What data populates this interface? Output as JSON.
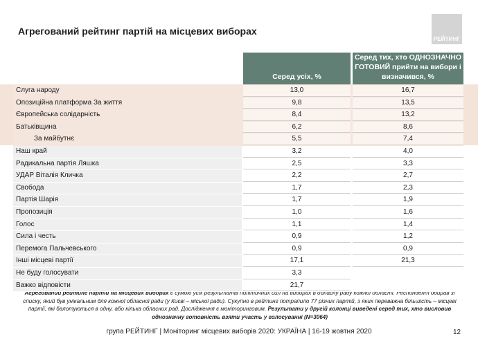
{
  "title": "Агрегований рейтинг партій на місцевих виборах",
  "logo_text": "РЕЙТИНГ",
  "columns": {
    "col1": "Серед усіх, %",
    "col2_lines": [
      "Серед тих, хто ОДНОЗНАЧНО",
      "ГОТОВИЙ прийти на вибори і",
      "визначився, %"
    ]
  },
  "rows": [
    {
      "name": "Слуга народу",
      "v1": "13,0",
      "v2": "16,7"
    },
    {
      "name": "Опозиційна платформа За життя",
      "v1": "9,8",
      "v2": "13,5"
    },
    {
      "name": "Європейська солідарність",
      "v1": "8,4",
      "v2": "13,2"
    },
    {
      "name": "Батьківщина",
      "v1": "6,2",
      "v2": "8,6"
    },
    {
      "name": "За майбутнє",
      "v1": "5,5",
      "v2": "7,4"
    },
    {
      "name": "Наш край",
      "v1": "3,2",
      "v2": "4,0"
    },
    {
      "name": "Радикальна партія Ляшка",
      "v1": "2,5",
      "v2": "3,3"
    },
    {
      "name": "УДАР Віталія Кличка",
      "v1": "2,2",
      "v2": "2,7"
    },
    {
      "name": "Свобода",
      "v1": "1,7",
      "v2": "2,3"
    },
    {
      "name": "Партія Шарія",
      "v1": "1,7",
      "v2": "1,9"
    },
    {
      "name": "Пропозиція",
      "v1": "1,0",
      "v2": "1,6"
    },
    {
      "name": "Голос",
      "v1": "1,1",
      "v2": "1,4"
    },
    {
      "name": "Сила і честь",
      "v1": "0,9",
      "v2": "1,2"
    },
    {
      "name": "Перемога Пальчевського",
      "v1": "0,9",
      "v2": "0,9"
    },
    {
      "name": "Інші місцеві партії",
      "v1": "17,1",
      "v2": "21,3"
    },
    {
      "name": "Не буду голосувати",
      "v1": "3,3",
      "v2": ""
    },
    {
      "name": "Важко відповісти",
      "v1": "21,7",
      "v2": ""
    }
  ],
  "note": {
    "bold1": "Агрегований рейтинг партій на місцевих виборах",
    "text1": " є сумою усіх результатів політичних сил на виборах в обласну раду кожної області. Респондент обирав зі списку, який був унікальним для кожної обласної ради (у Києві – міської ради). Сукупно в рейтинг потрапило 77 різних партій, з яких переважна більшість – місцеві партії, які балотуються в одну, або кілька обласних рад. Дослідження є моніторинговим. ",
    "bold2": "Результати у другій колонці виведені серед тих, хто висловив однозначну готовність взяти участь у голосуванні (N=3064)"
  },
  "footer": "група РЕЙТИНГ | Моніторинг місцевих виборів 2020: УКРАЇНА | 16-19 жовтня 2020",
  "page_number": "12"
}
